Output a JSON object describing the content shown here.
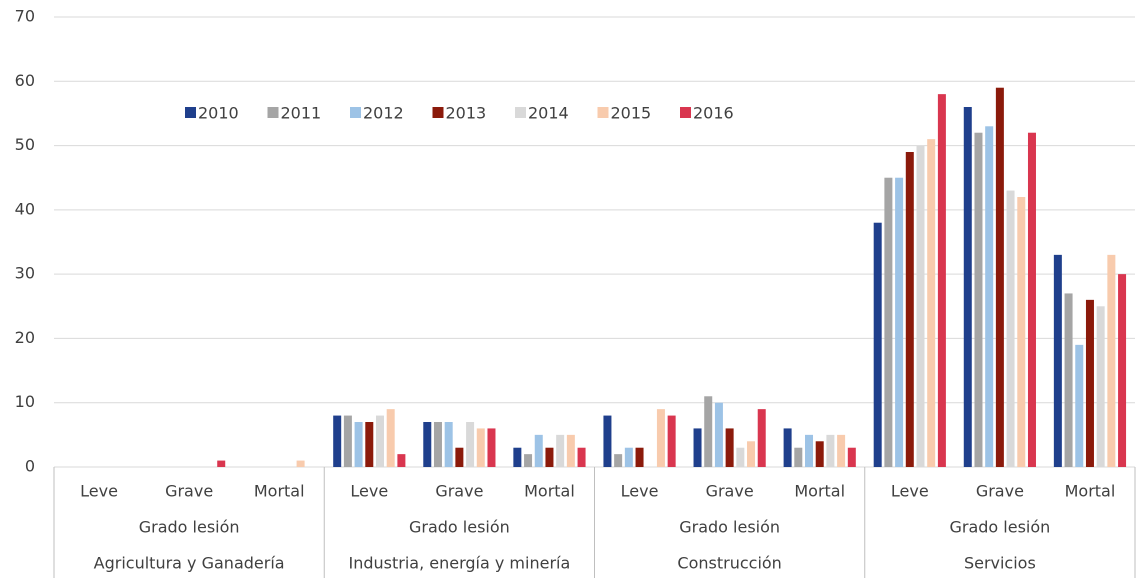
{
  "chart_data": {
    "type": "bar",
    "categories": [
      "Leve",
      "Grave",
      "Mortal",
      "Leve",
      "Grave",
      "Mortal",
      "Leve",
      "Grave",
      "Mortal",
      "Leve",
      "Grave",
      "Mortal"
    ],
    "subgroups": [
      "Grado lesión",
      "Grado lesión",
      "Grado lesión",
      "Grado lesión"
    ],
    "groups": [
      "Agricultura y Ganadería",
      "Industria, energía y minería",
      "Construcción",
      "Servicios"
    ],
    "series": [
      {
        "name": "2010",
        "color": "#1f3f8c",
        "values": [
          0,
          0,
          0,
          8,
          7,
          3,
          8,
          6,
          6,
          38,
          56,
          33
        ]
      },
      {
        "name": "2011",
        "color": "#a5a5a5",
        "values": [
          0,
          0,
          0,
          8,
          7,
          2,
          2,
          11,
          3,
          45,
          52,
          27
        ]
      },
      {
        "name": "2012",
        "color": "#9dc3e6",
        "values": [
          0,
          0,
          0,
          7,
          7,
          5,
          3,
          10,
          5,
          45,
          53,
          19
        ]
      },
      {
        "name": "2013",
        "color": "#8b1a0b",
        "values": [
          0,
          0,
          0,
          7,
          3,
          3,
          3,
          6,
          4,
          49,
          59,
          26
        ]
      },
      {
        "name": "2014",
        "color": "#d9d9d9",
        "values": [
          0,
          0,
          0,
          8,
          7,
          5,
          0,
          3,
          5,
          50,
          43,
          25
        ]
      },
      {
        "name": "2015",
        "color": "#f8cbad",
        "values": [
          0,
          0,
          1,
          9,
          6,
          5,
          9,
          4,
          5,
          51,
          42,
          33
        ]
      },
      {
        "name": "2016",
        "color": "#d9364f",
        "values": [
          0,
          1,
          0,
          2,
          6,
          3,
          8,
          9,
          3,
          58,
          52,
          30
        ]
      }
    ],
    "ylim": [
      0,
      70
    ],
    "yticks": [
      0,
      10,
      20,
      30,
      40,
      50,
      60,
      70
    ],
    "grid": true,
    "legend": "top"
  }
}
